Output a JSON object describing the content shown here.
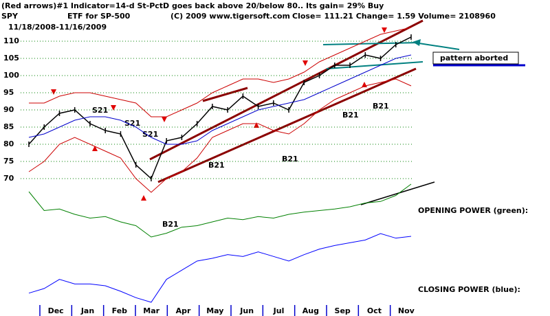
{
  "chart_data": {
    "type": "line",
    "title": "(Red arrows)#1 Indicator=14-d St-PctD goes back above 20/below 80.. Its gain= 29% Buy",
    "symbol": "SPY",
    "subtitle": "ETF for SP-500",
    "copyright": "(C) 2009 www.tigersoft.com",
    "quote": "Close= 111.21 Change= 1.59 Volume= 2108960",
    "date_range": "11/18/2008-11/16/2009",
    "months": [
      "Dec",
      "Jan",
      "Feb",
      "Mar",
      "Apr",
      "May",
      "Jun",
      "Jul",
      "Aug",
      "Sep",
      "Oct",
      "Nov"
    ],
    "ylim": [
      68,
      113
    ],
    "yticks": [
      70,
      75,
      80,
      85,
      90,
      95,
      100,
      105,
      110
    ],
    "grid": true,
    "series": [
      {
        "name": "Close",
        "color": "#000000",
        "values": [
          80,
          85,
          89,
          90,
          86,
          84,
          83,
          74,
          70,
          81,
          82,
          86,
          91,
          90,
          94,
          91,
          92,
          90,
          98,
          100,
          103,
          103,
          106,
          105,
          109,
          111.21
        ]
      },
      {
        "name": "Upper band",
        "color": "#cc0000",
        "values": [
          92,
          92,
          94,
          95,
          95,
          94,
          93,
          92,
          88,
          88,
          90,
          92,
          95,
          97,
          99,
          99,
          98,
          99,
          101,
          104,
          106,
          108,
          110,
          112,
          113,
          114
        ]
      },
      {
        "name": "Lower band",
        "color": "#cc0000",
        "values": [
          72,
          75,
          80,
          82,
          80,
          78,
          76,
          70,
          66,
          70,
          72,
          76,
          82,
          84,
          86,
          86,
          84,
          83,
          86,
          90,
          93,
          95,
          97,
          98,
          99,
          97
        ]
      },
      {
        "name": "Moving average",
        "color": "#0000cc",
        "values": [
          82,
          83,
          85,
          87,
          88,
          88,
          87,
          85,
          82,
          80,
          80,
          81,
          84,
          86,
          88,
          90,
          91,
          92,
          93,
          95,
          97,
          99,
          101,
          103,
          105,
          106
        ]
      }
    ],
    "opening_power": {
      "label": "OPENING POWER (green):",
      "color": "#008000",
      "values": [
        85,
        60,
        62,
        55,
        50,
        52,
        45,
        40,
        25,
        30,
        38,
        40,
        45,
        50,
        48,
        52,
        50,
        55,
        58,
        60,
        62,
        65,
        70,
        72,
        80,
        95
      ]
    },
    "closing_power": {
      "label": "CLOSING POWER (blue):",
      "color": "#0000ff",
      "values": [
        20,
        25,
        35,
        30,
        30,
        28,
        22,
        15,
        10,
        35,
        45,
        55,
        58,
        62,
        60,
        65,
        60,
        55,
        62,
        68,
        72,
        75,
        78,
        85,
        80,
        82
      ]
    },
    "annotation": "pattern aborted",
    "sell_signals": [
      "S21",
      "S21",
      "S21"
    ],
    "buy_signals": [
      "B21",
      "B21",
      "B21",
      "B21",
      "B21"
    ]
  }
}
